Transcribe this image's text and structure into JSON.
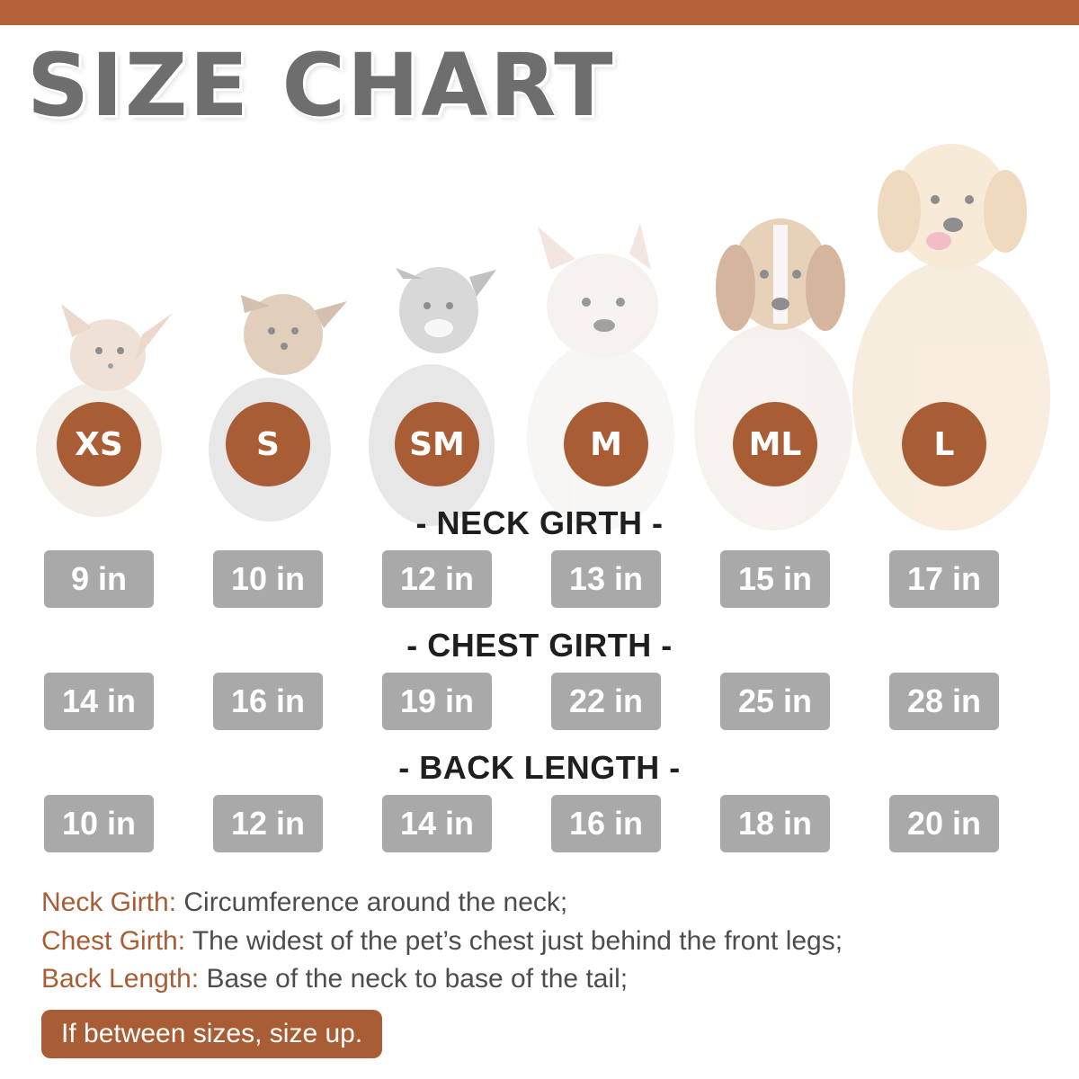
{
  "title": "SIZE CHART",
  "colors": {
    "accent": "#a95d35",
    "top_bar": "#b5623a",
    "value_box": "#a9a9a9",
    "title": "#6e6e6e"
  },
  "sizes": [
    "XS",
    "S",
    "SM",
    "M",
    "ML",
    "L"
  ],
  "sections": [
    {
      "label": "- NECK GIRTH -",
      "values": [
        "9 in",
        "10 in",
        "12 in",
        "13 in",
        "15 in",
        "17 in"
      ]
    },
    {
      "label": "- CHEST GIRTH -",
      "values": [
        "14 in",
        "16 in",
        "19 in",
        "22 in",
        "25 in",
        "28 in"
      ]
    },
    {
      "label": "- BACK LENGTH -",
      "values": [
        "10 in",
        "12 in",
        "14 in",
        "16 in",
        "18 in",
        "20 in"
      ]
    }
  ],
  "definitions": [
    {
      "term": "Neck Girth:",
      "text": " Circumference around the neck;"
    },
    {
      "term": "Chest Girth:",
      "text": " The widest of the pet’s chest just behind the front legs;"
    },
    {
      "term": "Back Length:",
      "text": " Base of the neck to base of the tail;"
    }
  ],
  "note": "If between sizes, size up.",
  "dog_images": [
    "chihuahua",
    "yorkshire-terrier",
    "schnauzer",
    "french-bulldog",
    "beagle",
    "golden-retriever"
  ]
}
